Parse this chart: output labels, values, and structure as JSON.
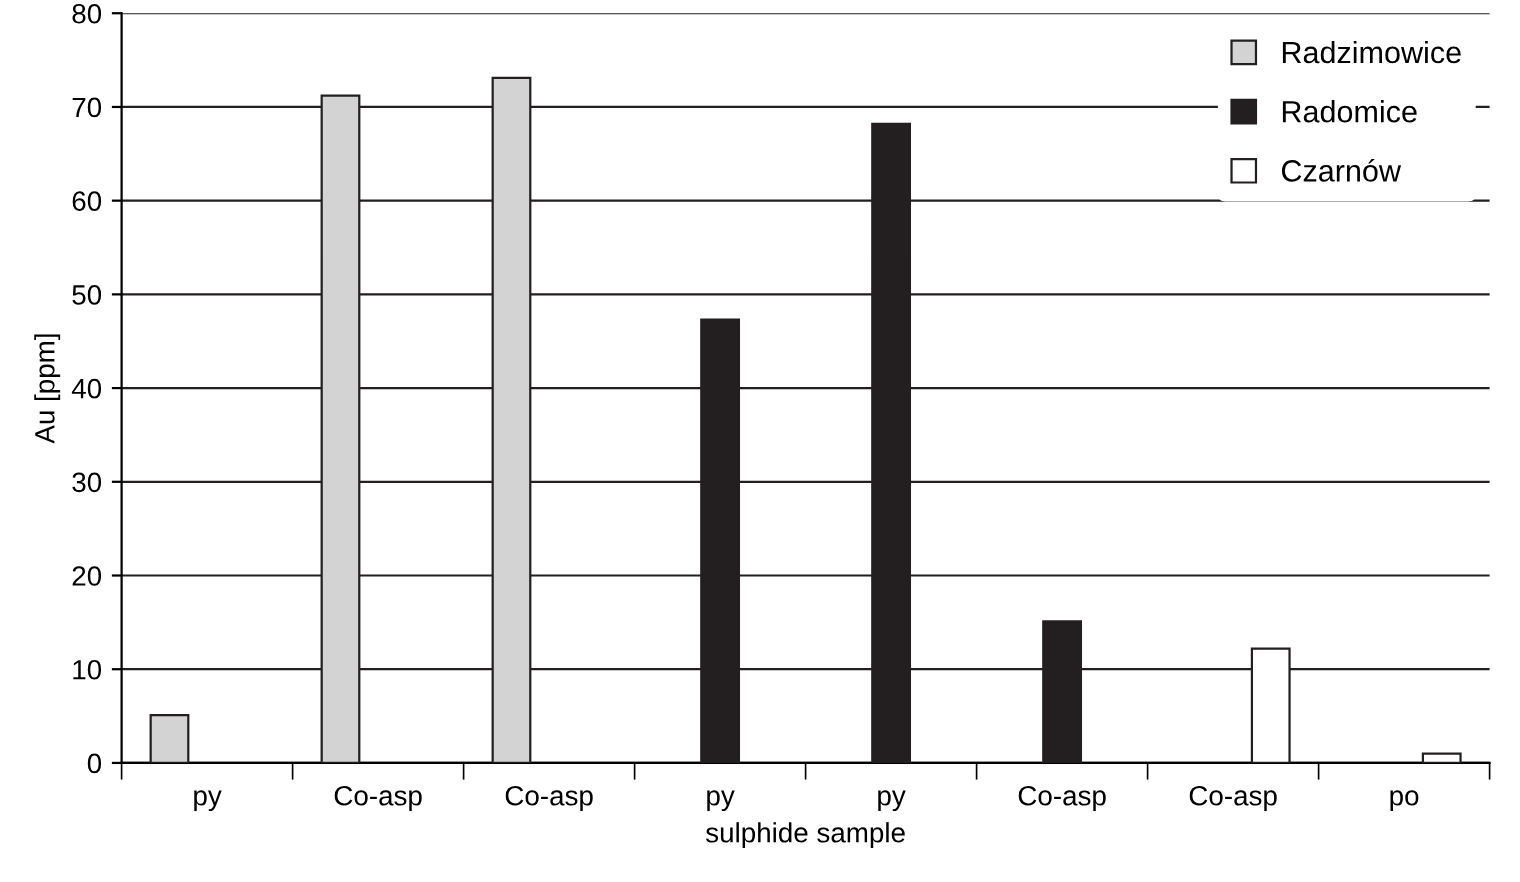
{
  "chart_data": {
    "type": "bar",
    "xlabel": "sulphide sample",
    "ylabel": "Au [ppm]",
    "categories": [
      "py",
      "Co-asp",
      "Co-asp",
      "py",
      "py",
      "Co-asp",
      "Co-asp",
      "po"
    ],
    "series": [
      {
        "name": "Radzimowice",
        "color": "#d3d3d3",
        "values": [
          5.1,
          71.2,
          73.1,
          null,
          null,
          null,
          null,
          null
        ]
      },
      {
        "name": "Radomice",
        "color": "#231f20",
        "values": [
          null,
          null,
          null,
          47.3,
          68.2,
          15.1,
          null,
          null
        ]
      },
      {
        "name": "Czarnów",
        "color": "#ffffff",
        "values": [
          null,
          null,
          null,
          null,
          null,
          null,
          12.2,
          1.0
        ]
      }
    ],
    "ylim": [
      0,
      80
    ],
    "yticks": [
      0,
      10,
      20,
      30,
      40,
      50,
      60,
      70,
      80
    ],
    "grid": "y",
    "legend": "top right"
  }
}
